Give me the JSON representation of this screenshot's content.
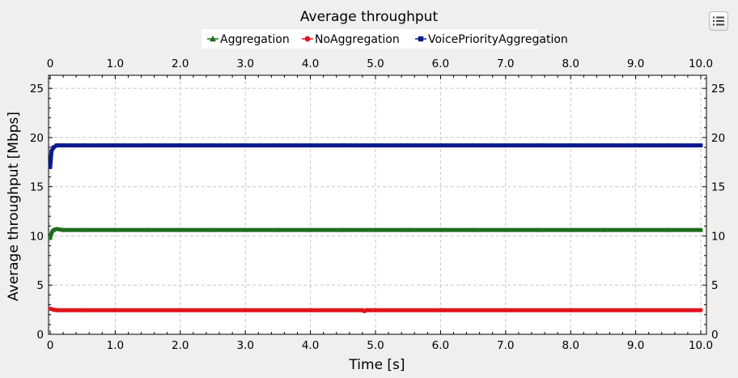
{
  "chart_data": {
    "type": "line",
    "title": "Average throughput",
    "xlabel": "Time [s]",
    "ylabel": "Average throughput [Mbps]",
    "xlim": [
      0,
      10.0
    ],
    "ylim": [
      0,
      26
    ],
    "x_ticks": [
      "0",
      "1.0",
      "2.0",
      "3.0",
      "4.0",
      "5.0",
      "6.0",
      "7.0",
      "8.0",
      "9.0",
      "10.0"
    ],
    "y_ticks": [
      "0",
      "5",
      "10",
      "15",
      "20",
      "25"
    ],
    "grid": true,
    "legend_position": "top",
    "series": [
      {
        "name": "Aggregation",
        "color": "#1e6e1e",
        "marker": "triangle",
        "x": [
          0.0,
          0.02,
          0.05,
          0.1,
          0.2,
          0.5,
          1.0,
          1.5,
          2.0,
          2.5,
          3.0,
          3.5,
          4.0,
          4.5,
          5.0,
          5.5,
          6.0,
          6.5,
          7.0,
          7.5,
          8.0,
          8.5,
          9.0,
          9.5,
          10.0
        ],
        "y": [
          9.8,
          10.3,
          10.6,
          10.7,
          10.6,
          10.6,
          10.6,
          10.6,
          10.6,
          10.6,
          10.6,
          10.6,
          10.6,
          10.6,
          10.6,
          10.6,
          10.6,
          10.6,
          10.6,
          10.6,
          10.6,
          10.6,
          10.6,
          10.6,
          10.6
        ]
      },
      {
        "name": "NoAggregation",
        "color": "#e0141e",
        "marker": "circle",
        "x": [
          0.0,
          0.05,
          0.1,
          0.5,
          1.0,
          2.0,
          3.0,
          4.0,
          4.8,
          4.83,
          4.86,
          5.0,
          6.0,
          7.0,
          8.0,
          9.0,
          10.0
        ],
        "y": [
          2.6,
          2.5,
          2.45,
          2.45,
          2.45,
          2.45,
          2.45,
          2.45,
          2.45,
          2.35,
          2.45,
          2.45,
          2.45,
          2.45,
          2.45,
          2.45,
          2.45
        ]
      },
      {
        "name": "VoicePriorityAggregation",
        "color": "#0a1a8c",
        "marker": "square",
        "x": [
          0.0,
          0.02,
          0.05,
          0.1,
          0.2,
          0.5,
          1.0,
          1.5,
          2.0,
          2.5,
          3.0,
          3.5,
          4.0,
          4.5,
          5.0,
          5.5,
          6.0,
          6.5,
          7.0,
          7.5,
          8.0,
          8.5,
          9.0,
          9.5,
          10.0
        ],
        "y": [
          17.0,
          18.6,
          19.0,
          19.2,
          19.2,
          19.2,
          19.2,
          19.2,
          19.2,
          19.2,
          19.2,
          19.2,
          19.2,
          19.2,
          19.2,
          19.2,
          19.2,
          19.2,
          19.2,
          19.2,
          19.2,
          19.2,
          19.2,
          19.2,
          19.2
        ]
      }
    ]
  },
  "ui": {
    "menu_icon": "list-menu-icon"
  }
}
